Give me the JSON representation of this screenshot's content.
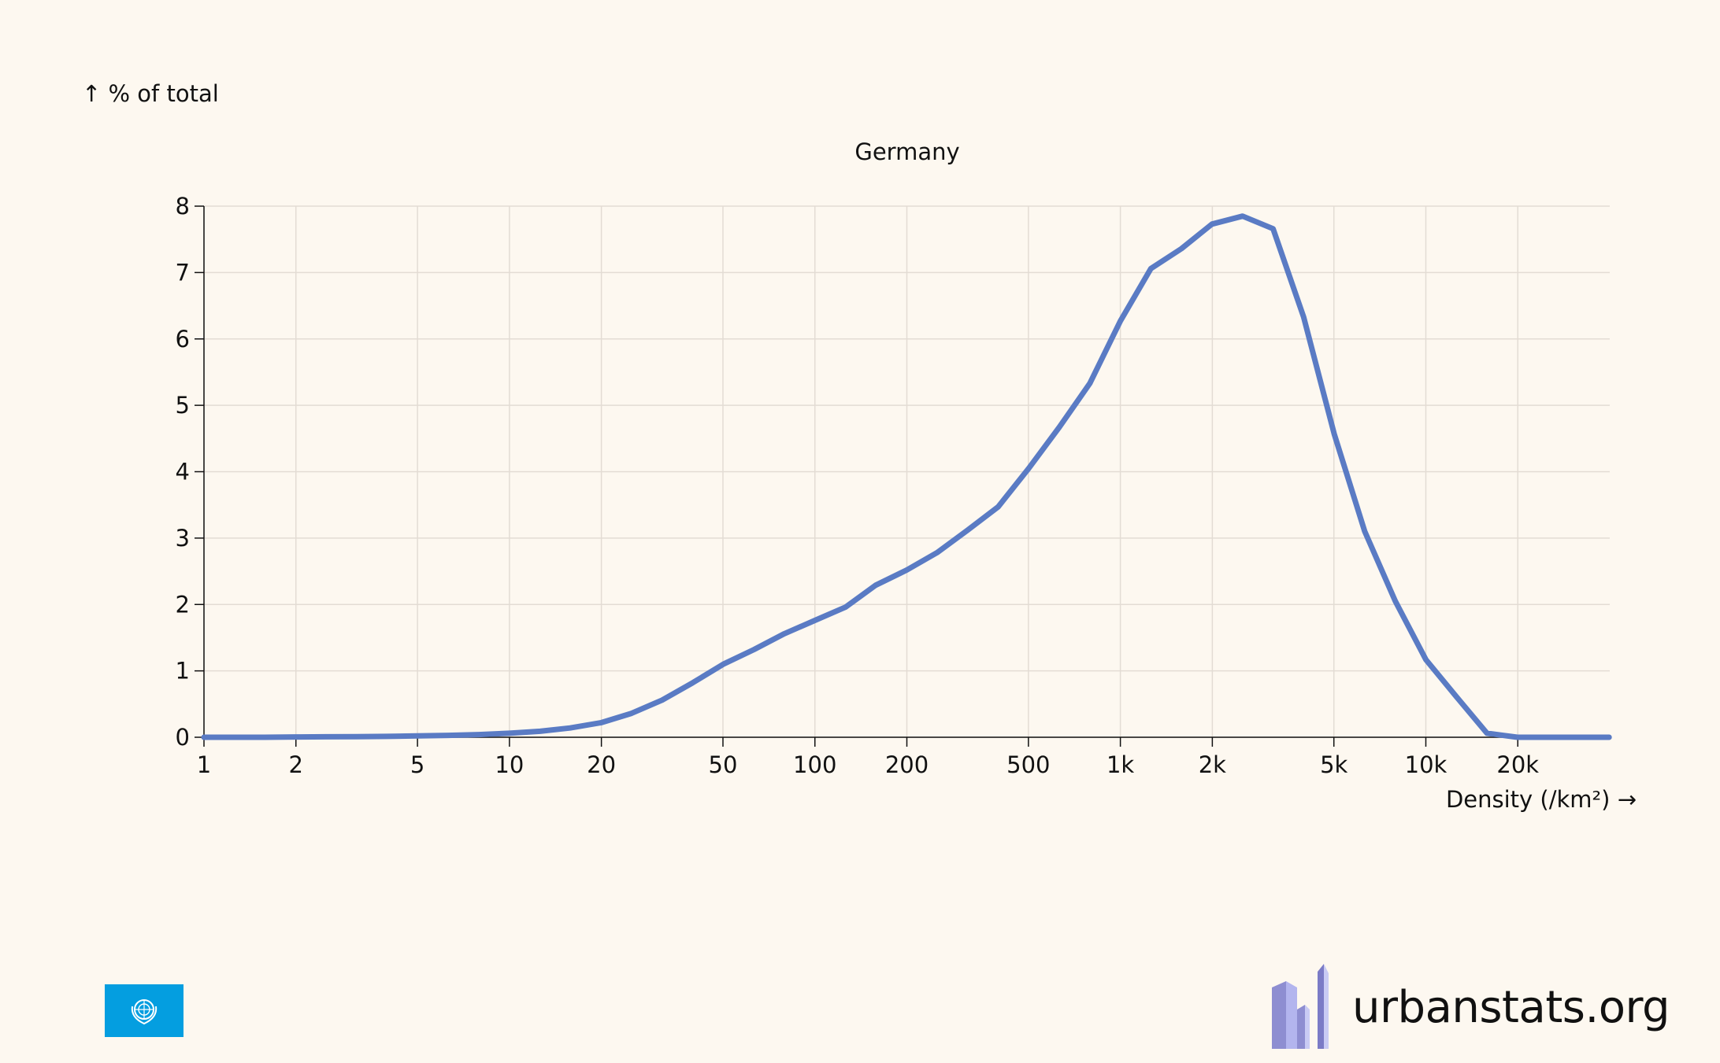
{
  "chart_data": {
    "type": "line",
    "title": "Germany",
    "ylabel": "↑ % of total",
    "xlabel": "Density (/km²) →",
    "x_scale": "log",
    "xlim": [
      1,
      40000
    ],
    "ylim": [
      0,
      8
    ],
    "grid": true,
    "x_ticks": [
      {
        "value": 1,
        "label": "1"
      },
      {
        "value": 2,
        "label": "2"
      },
      {
        "value": 5,
        "label": "5"
      },
      {
        "value": 10,
        "label": "10"
      },
      {
        "value": 20,
        "label": "20"
      },
      {
        "value": 50,
        "label": "50"
      },
      {
        "value": 100,
        "label": "100"
      },
      {
        "value": 200,
        "label": "200"
      },
      {
        "value": 500,
        "label": "500"
      },
      {
        "value": 1000,
        "label": "1k"
      },
      {
        "value": 2000,
        "label": "2k"
      },
      {
        "value": 5000,
        "label": "5k"
      },
      {
        "value": 10000,
        "label": "10k"
      },
      {
        "value": 20000,
        "label": "20k"
      }
    ],
    "y_ticks": [
      0,
      1,
      2,
      3,
      4,
      5,
      6,
      7,
      8
    ],
    "series": [
      {
        "color": "#5a7bc4",
        "x": [
          1,
          1.26,
          1.58,
          2,
          2.51,
          3.16,
          3.98,
          5.01,
          6.31,
          7.94,
          10,
          12.6,
          15.8,
          20,
          25.1,
          31.6,
          39.8,
          50.1,
          63.1,
          79.4,
          100,
          126,
          158,
          200,
          251,
          316,
          398,
          501,
          631,
          794,
          1000,
          1259,
          1585,
          1995,
          2512,
          3162,
          3981,
          5012,
          6310,
          7943,
          10000,
          12589,
          15849,
          19953,
          25119,
          31623,
          39811
        ],
        "y": [
          0,
          0,
          0,
          0.005,
          0.007,
          0.01,
          0.013,
          0.02,
          0.028,
          0.04,
          0.06,
          0.09,
          0.14,
          0.22,
          0.36,
          0.56,
          0.82,
          1.1,
          1.32,
          1.56,
          1.76,
          1.96,
          2.29,
          2.52,
          2.78,
          3.12,
          3.47,
          4.05,
          4.67,
          5.33,
          6.27,
          7.06,
          7.36,
          7.73,
          7.85,
          7.66,
          6.33,
          4.57,
          3.1,
          2.05,
          1.17,
          0.61,
          0.06,
          0,
          0,
          0,
          0
        ]
      }
    ]
  },
  "footer": {
    "flag_icon": "un-flag-icon",
    "logo_icon": "urbanstats-logo-icon",
    "site": "urbanstats.org"
  }
}
